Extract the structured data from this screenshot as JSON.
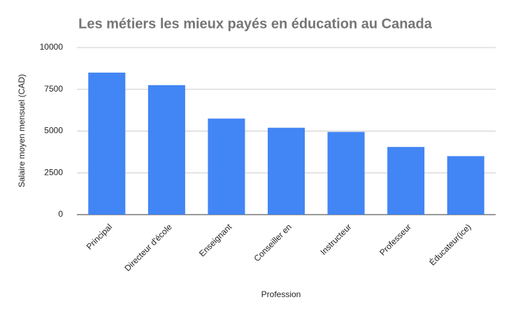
{
  "chart_data": {
    "type": "bar",
    "title": "Les métiers les mieux payés en éducation au Canada",
    "x_label": "Profession",
    "y_label": "Salaire moyen mensuel (CAD)",
    "categories": [
      "Principal",
      "Directeur d'école",
      "Enseignant",
      "Conseiller en",
      "Instructeur",
      "Professeur",
      "Éducateur(ice)"
    ],
    "values": [
      8500,
      7750,
      5750,
      5200,
      4950,
      4050,
      3500
    ],
    "color": "#4285f4",
    "ylim": [
      0,
      10000
    ],
    "yticks": [
      0,
      2500,
      5000,
      7500,
      10000
    ],
    "grid": true
  }
}
